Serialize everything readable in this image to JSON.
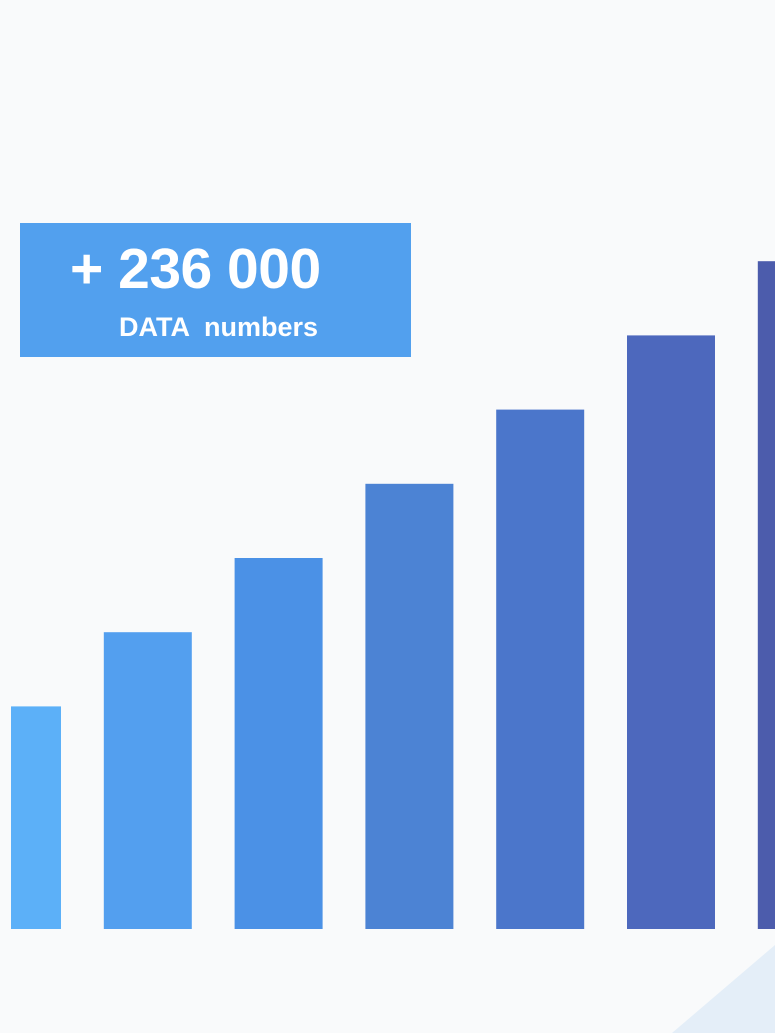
{
  "badge": {
    "value": "+ 236 000",
    "label": "DATA  numbers"
  },
  "colors": {
    "background": "#f9fafb",
    "badge": "#52a0ee",
    "corner_accent": "#e4eef8"
  },
  "chart_data": {
    "type": "bar",
    "values": [
      3,
      4,
      5,
      6,
      7,
      8,
      9
    ],
    "colors": [
      "#5cb0f8",
      "#539fef",
      "#4b91e6",
      "#4c83d4",
      "#4b76cb",
      "#4d68bd",
      "#4c5cac"
    ],
    "ylim": [
      0,
      9
    ],
    "grid": false,
    "xlabel": "",
    "ylabel": "",
    "title": ""
  }
}
